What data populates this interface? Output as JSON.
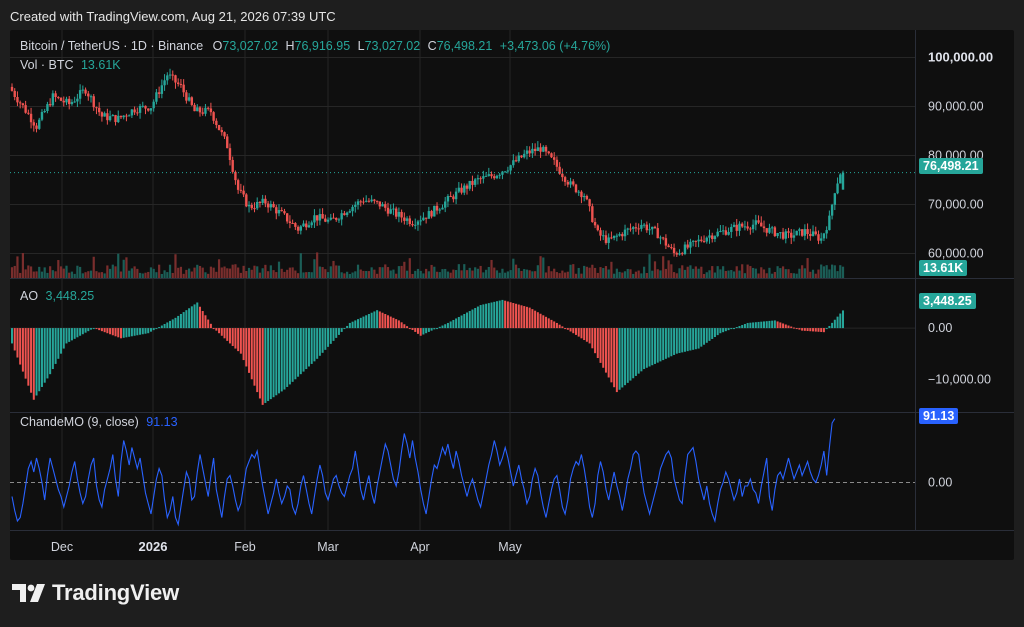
{
  "caption": "Created with TradingView.com, Aug 21, 2026 07:39 UTC",
  "brand": "TradingView",
  "colors": {
    "up": "#26a69a",
    "down": "#ef5350",
    "chande": "#2962ff",
    "last_price_bg": "#26a69a",
    "chande_bg": "#2962ff"
  },
  "header": {
    "symbol": "Bitcoin / TetherUS · 1D · Binance",
    "open_label": "O",
    "open": "73,027.02",
    "high_label": "H",
    "high": "76,916.95",
    "low_label": "L",
    "low": "73,027.02",
    "close_label": "C",
    "close": "76,498.21",
    "change": "+3,473.06 (+4.76%)",
    "vol_label": "Vol · BTC",
    "vol": "13.61K"
  },
  "ao_pane": {
    "label": "AO",
    "value": "3,448.25"
  },
  "chande_pane": {
    "label": "ChandeMO (9, close)",
    "value": "91.13"
  },
  "price_axis": [
    "100,000.00",
    "90,000.00",
    "80,000.00",
    "70,000.00",
    "60,000.00"
  ],
  "last_price": "76,498.21",
  "volume_tag": "13.61K",
  "ao_axis": [
    "0.00",
    "−10,000.00"
  ],
  "ao_tag": "3,448.25",
  "chande_axis": [
    "0.00"
  ],
  "chande_tag": "91.13",
  "time_axis": [
    "Dec",
    "2026",
    "Feb",
    "Mar",
    "Apr",
    "May"
  ],
  "chart_data": [
    {
      "type": "candlestick",
      "title": "Bitcoin / TetherUS · 1D · Binance",
      "ylim": [
        55000,
        105000
      ],
      "anchors": [
        {
          "t": 0,
          "p": 94000
        },
        {
          "t": 5,
          "p": 90000
        },
        {
          "t": 10,
          "p": 86000
        },
        {
          "t": 16,
          "p": 92000
        },
        {
          "t": 22,
          "p": 90500
        },
        {
          "t": 28,
          "p": 93500
        },
        {
          "t": 34,
          "p": 88000
        },
        {
          "t": 40,
          "p": 87500
        },
        {
          "t": 46,
          "p": 89500
        },
        {
          "t": 52,
          "p": 90000
        },
        {
          "t": 58,
          "p": 96500
        },
        {
          "t": 63,
          "p": 94000
        },
        {
          "t": 68,
          "p": 89000
        },
        {
          "t": 74,
          "p": 89000
        },
        {
          "t": 80,
          "p": 82000
        },
        {
          "t": 84,
          "p": 73000
        },
        {
          "t": 88,
          "p": 69500
        },
        {
          "t": 94,
          "p": 70500
        },
        {
          "t": 100,
          "p": 68000
        },
        {
          "t": 106,
          "p": 65000
        },
        {
          "t": 112,
          "p": 67500
        },
        {
          "t": 118,
          "p": 66500
        },
        {
          "t": 124,
          "p": 69000
        },
        {
          "t": 130,
          "p": 71000
        },
        {
          "t": 136,
          "p": 70000
        },
        {
          "t": 142,
          "p": 68000
        },
        {
          "t": 148,
          "p": 66500
        },
        {
          "t": 154,
          "p": 68000
        },
        {
          "t": 160,
          "p": 70500
        },
        {
          "t": 166,
          "p": 73000
        },
        {
          "t": 172,
          "p": 75000
        },
        {
          "t": 178,
          "p": 76000
        },
        {
          "t": 184,
          "p": 78000
        },
        {
          "t": 190,
          "p": 80500
        },
        {
          "t": 195,
          "p": 81500
        },
        {
          "t": 200,
          "p": 78500
        },
        {
          "t": 206,
          "p": 74000
        },
        {
          "t": 211,
          "p": 72000
        },
        {
          "t": 216,
          "p": 64000
        },
        {
          "t": 220,
          "p": 62500
        },
        {
          "t": 226,
          "p": 64500
        },
        {
          "t": 232,
          "p": 66000
        },
        {
          "t": 238,
          "p": 64000
        },
        {
          "t": 244,
          "p": 60000
        },
        {
          "t": 250,
          "p": 61500
        },
        {
          "t": 256,
          "p": 63500
        },
        {
          "t": 262,
          "p": 64500
        },
        {
          "t": 268,
          "p": 65500
        },
        {
          "t": 274,
          "p": 66000
        },
        {
          "t": 280,
          "p": 64500
        },
        {
          "t": 286,
          "p": 63500
        },
        {
          "t": 292,
          "p": 64500
        },
        {
          "t": 298,
          "p": 63000
        },
        {
          "t": 301,
          "p": 67000
        },
        {
          "t": 303,
          "p": 73000
        },
        {
          "t": 305,
          "p": 76500
        }
      ],
      "last": {
        "open": 73027.02,
        "high": 76916.95,
        "low": 73027.02,
        "close": 76498.21,
        "volume": "13.61K"
      }
    },
    {
      "type": "bar",
      "title": "AO",
      "ylim": [
        -16000,
        9000
      ],
      "anchors": [
        {
          "t": 0,
          "v": -3000
        },
        {
          "t": 8,
          "v": -14000
        },
        {
          "t": 14,
          "v": -9000
        },
        {
          "t": 20,
          "v": -3000
        },
        {
          "t": 30,
          "v": 0
        },
        {
          "t": 40,
          "v": -2000
        },
        {
          "t": 50,
          "v": -1000
        },
        {
          "t": 60,
          "v": 2000
        },
        {
          "t": 68,
          "v": 5000
        },
        {
          "t": 74,
          "v": 0
        },
        {
          "t": 84,
          "v": -5000
        },
        {
          "t": 92,
          "v": -15000
        },
        {
          "t": 100,
          "v": -12000
        },
        {
          "t": 112,
          "v": -6000
        },
        {
          "t": 124,
          "v": 1000
        },
        {
          "t": 134,
          "v": 3500
        },
        {
          "t": 142,
          "v": 1500
        },
        {
          "t": 150,
          "v": -1500
        },
        {
          "t": 160,
          "v": 1000
        },
        {
          "t": 172,
          "v": 4500
        },
        {
          "t": 180,
          "v": 5500
        },
        {
          "t": 190,
          "v": 4000
        },
        {
          "t": 200,
          "v": 1000
        },
        {
          "t": 206,
          "v": -1000
        },
        {
          "t": 212,
          "v": -3000
        },
        {
          "t": 222,
          "v": -12500
        },
        {
          "t": 232,
          "v": -8000
        },
        {
          "t": 244,
          "v": -5000
        },
        {
          "t": 252,
          "v": -4000
        },
        {
          "t": 260,
          "v": -1000
        },
        {
          "t": 270,
          "v": 1000
        },
        {
          "t": 280,
          "v": 1500
        },
        {
          "t": 290,
          "v": -500
        },
        {
          "t": 298,
          "v": -800
        },
        {
          "t": 305,
          "v": 3448.25
        }
      ],
      "last": 3448.25
    },
    {
      "type": "line",
      "title": "ChandeMO (9, close)",
      "ylim": [
        -65,
        95
      ],
      "values": [
        -20,
        -40,
        -55,
        -50,
        -30,
        -5,
        20,
        30,
        15,
        35,
        20,
        0,
        -25,
        10,
        35,
        20,
        5,
        -10,
        -20,
        -35,
        -20,
        -5,
        15,
        30,
        5,
        -15,
        -30,
        -20,
        5,
        25,
        35,
        -5,
        -25,
        -35,
        -10,
        5,
        20,
        40,
        5,
        -20,
        30,
        60,
        45,
        25,
        50,
        35,
        20,
        35,
        10,
        -15,
        -30,
        -45,
        -20,
        5,
        20,
        10,
        -25,
        -50,
        -40,
        -20,
        -50,
        -60,
        -35,
        -10,
        15,
        5,
        -25,
        -20,
        15,
        40,
        20,
        0,
        -20,
        10,
        35,
        -10,
        -30,
        -50,
        -20,
        5,
        10,
        -5,
        -25,
        -40,
        -30,
        -5,
        20,
        30,
        40,
        35,
        45,
        20,
        -5,
        -25,
        -45,
        -30,
        -15,
        5,
        -15,
        -30,
        -20,
        -5,
        -10,
        -35,
        -45,
        -30,
        -5,
        10,
        -10,
        -30,
        -45,
        -20,
        5,
        25,
        10,
        -15,
        -25,
        -10,
        5,
        10,
        -5,
        -15,
        -20,
        -5,
        10,
        20,
        45,
        20,
        -10,
        -25,
        -5,
        10,
        -15,
        -30,
        -5,
        15,
        35,
        55,
        45,
        25,
        5,
        -5,
        15,
        45,
        70,
        55,
        35,
        60,
        35,
        15,
        -10,
        -30,
        -45,
        -20,
        5,
        25,
        20,
        35,
        50,
        40,
        55,
        35,
        20,
        45,
        30,
        10,
        -5,
        -20,
        -5,
        5,
        -10,
        -25,
        -35,
        -15,
        5,
        25,
        40,
        60,
        45,
        25,
        35,
        50,
        35,
        15,
        -5,
        10,
        25,
        5,
        -10,
        -30,
        -20,
        5,
        20,
        10,
        -15,
        -35,
        -50,
        -30,
        -10,
        5,
        10,
        -10,
        -35,
        -45,
        -25,
        5,
        20,
        30,
        25,
        40,
        20,
        -5,
        -35,
        -50,
        -30,
        10,
        30,
        15,
        -10,
        -25,
        -5,
        15,
        -5,
        -20,
        -40,
        -20,
        5,
        20,
        40,
        45,
        40,
        10,
        -15,
        -30,
        -45,
        -30,
        -15,
        0,
        20,
        30,
        40,
        45,
        35,
        5,
        -10,
        -25,
        -30,
        10,
        40,
        45,
        50,
        30,
        5,
        -10,
        -25,
        -5,
        -30,
        -45,
        -55,
        -30,
        -10,
        0,
        15,
        5,
        -10,
        -25,
        -15,
        5,
        -20,
        -5,
        -5,
        5,
        -10,
        -15,
        -30,
        -5,
        15,
        35,
        -20,
        -40,
        -10,
        10,
        15,
        5,
        20,
        35,
        20,
        5,
        15,
        25,
        10,
        20,
        30,
        15,
        5,
        0,
        10,
        25,
        45,
        10,
        50,
        85,
        91.13
      ]
    }
  ]
}
